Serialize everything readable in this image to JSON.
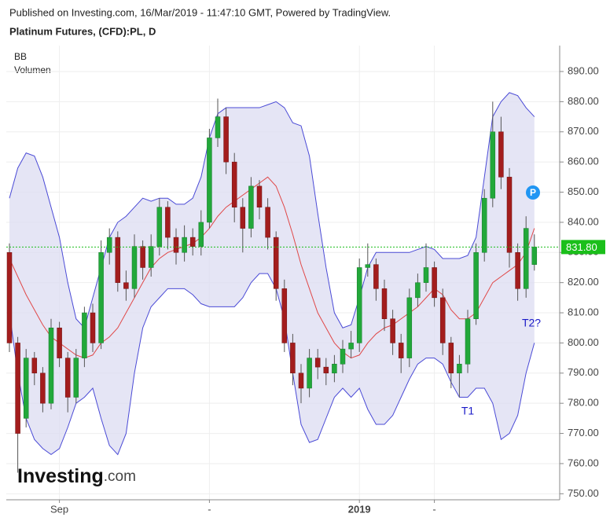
{
  "chart_data": {
    "type": "candlestick",
    "header": "Published on Investing.com, 16/Mar/2019 - 11:47:10 GMT, Powered by TradingView.",
    "title": "Platinum Futures, (CFD):PL, D",
    "legend": [
      "BB",
      "Volumen"
    ],
    "logo": {
      "brand": "Investing",
      "suffix": ".com"
    },
    "categories": [
      null,
      null,
      null,
      null,
      null,
      null,
      "Sep",
      null,
      null,
      null,
      null,
      null,
      null,
      null,
      null,
      null,
      null,
      null,
      null,
      null,
      null,
      null,
      null,
      null,
      "-",
      null,
      null,
      null,
      null,
      null,
      null,
      null,
      null,
      null,
      null,
      null,
      null,
      null,
      null,
      null,
      null,
      null,
      "2019",
      null,
      null,
      null,
      null,
      null,
      null,
      null,
      null,
      "-",
      null,
      null,
      null,
      null,
      null,
      null,
      null,
      null,
      null,
      null,
      null,
      null
    ],
    "open": [
      830,
      800,
      775,
      795,
      790,
      780,
      805,
      795,
      782,
      795,
      810,
      800,
      830,
      835,
      820,
      818,
      832,
      825,
      832,
      845,
      835,
      830,
      835,
      832,
      840,
      868,
      875,
      860,
      845,
      838,
      852,
      845,
      835,
      818,
      800,
      790,
      785,
      795,
      792,
      790,
      793,
      798,
      800,
      825,
      826,
      818,
      808,
      800,
      795,
      815,
      820,
      825,
      815,
      800,
      790,
      793,
      808,
      830,
      848,
      870,
      855,
      830,
      818,
      826
    ],
    "high": [
      833,
      802,
      798,
      797,
      792,
      808,
      807,
      797,
      798,
      812,
      813,
      834,
      838,
      837,
      824,
      836,
      834,
      836,
      848,
      847,
      838,
      839,
      838,
      844,
      871,
      881,
      878,
      863,
      848,
      855,
      854,
      848,
      837,
      821,
      803,
      793,
      798,
      798,
      795,
      796,
      801,
      804,
      828,
      833,
      828,
      821,
      811,
      803,
      818,
      823,
      833,
      827,
      818,
      802,
      796,
      811,
      833,
      851,
      880,
      875,
      858,
      833,
      842,
      836
    ],
    "low": [
      797,
      757,
      772,
      786,
      777,
      778,
      792,
      777,
      780,
      792,
      797,
      798,
      826,
      817,
      814,
      815,
      821,
      822,
      829,
      831,
      826,
      827,
      829,
      829,
      838,
      865,
      856,
      840,
      830,
      835,
      841,
      831,
      814,
      797,
      786,
      780,
      782,
      788,
      786,
      787,
      790,
      795,
      797,
      822,
      814,
      804,
      796,
      790,
      792,
      812,
      817,
      812,
      796,
      785,
      782,
      790,
      806,
      827,
      845,
      851,
      825,
      814,
      815,
      824
    ],
    "close": [
      800,
      770,
      795,
      790,
      780,
      805,
      795,
      782,
      795,
      810,
      800,
      830,
      835,
      820,
      818,
      832,
      825,
      832,
      845,
      835,
      830,
      835,
      832,
      840,
      868,
      875,
      860,
      845,
      838,
      852,
      845,
      835,
      818,
      800,
      790,
      785,
      795,
      792,
      790,
      793,
      798,
      800,
      825,
      826,
      818,
      808,
      800,
      795,
      815,
      820,
      825,
      815,
      800,
      790,
      793,
      808,
      830,
      848,
      870,
      855,
      830,
      818,
      838,
      831.8
    ],
    "bands": {
      "upper": [
        848,
        858,
        863,
        862,
        855,
        845,
        835,
        820,
        808,
        805,
        815,
        825,
        835,
        840,
        842,
        845,
        848,
        847,
        848,
        848,
        846,
        846,
        848,
        855,
        868,
        876,
        878,
        878,
        878,
        878,
        878,
        879,
        880,
        878,
        873,
        872,
        862,
        843,
        825,
        810,
        805,
        806,
        815,
        825,
        830,
        830,
        830,
        830,
        830,
        831,
        832,
        831,
        828,
        828,
        828,
        829,
        835,
        855,
        875,
        880,
        883,
        882,
        878,
        875
      ],
      "middle": [
        828,
        822,
        816,
        811,
        806,
        802,
        800,
        798,
        796,
        795,
        796,
        800,
        802,
        805,
        810,
        815,
        820,
        825,
        828,
        830,
        831,
        832,
        833,
        835,
        838,
        842,
        845,
        847,
        849,
        851,
        853,
        855,
        852,
        845,
        836,
        826,
        818,
        810,
        805,
        800,
        797,
        795,
        796,
        800,
        803,
        805,
        806,
        808,
        810,
        812,
        815,
        818,
        816,
        811,
        808,
        808,
        810,
        815,
        820,
        822,
        824,
        826,
        830,
        838
      ],
      "lower": [
        810,
        790,
        775,
        768,
        765,
        763,
        765,
        772,
        780,
        782,
        785,
        775,
        766,
        763,
        770,
        790,
        805,
        812,
        815,
        818,
        818,
        818,
        816,
        813,
        812,
        812,
        812,
        812,
        815,
        820,
        823,
        823,
        818,
        808,
        790,
        773,
        767,
        768,
        775,
        782,
        785,
        782,
        785,
        778,
        773,
        773,
        776,
        782,
        788,
        793,
        795,
        795,
        793,
        787,
        782,
        782,
        785,
        785,
        780,
        768,
        770,
        776,
        790,
        800
      ]
    },
    "last_price": {
      "value": 831.8,
      "label": "831.80"
    },
    "annotations": [
      "T1",
      "T2?",
      "P"
    ],
    "ylim": [
      748,
      898.6
    ],
    "yticks": [
      {
        "value": 750,
        "label": "750.00"
      },
      {
        "value": 760,
        "label": "760.00"
      },
      {
        "value": 770,
        "label": "770.00"
      },
      {
        "value": 780,
        "label": "780.00"
      },
      {
        "value": 790,
        "label": "790.00"
      },
      {
        "value": 800,
        "label": "800.00"
      },
      {
        "value": 810,
        "label": "810.00"
      },
      {
        "value": 820,
        "label": "820.00"
      },
      {
        "value": 830,
        "label": "830.00"
      },
      {
        "value": 840,
        "label": "840.00"
      },
      {
        "value": 850,
        "label": "850.00"
      },
      {
        "value": 860,
        "label": "860.00"
      },
      {
        "value": 870,
        "label": "870.00"
      },
      {
        "value": 880,
        "label": "880.00"
      },
      {
        "value": 890,
        "label": "890.00"
      }
    ],
    "grid": true,
    "colors": {
      "up": "#22a83a",
      "down": "#a31d1d",
      "wick": "#555555",
      "band": "#4a4ad6",
      "band_fill": "#dcdcf2",
      "middle": "#e04848",
      "last_price": "#1bbf1b",
      "annotation": "#1a1ac8",
      "marker": "#2196f3"
    }
  }
}
